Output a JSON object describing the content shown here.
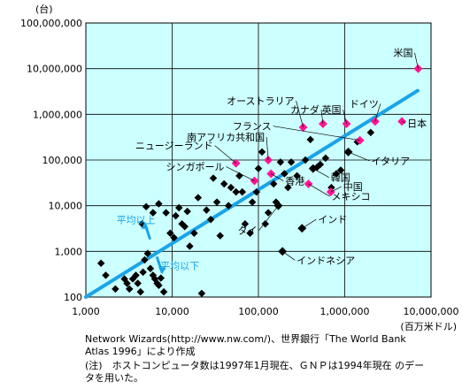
{
  "chart_data": {
    "type": "scatter",
    "title": "",
    "xlabel": "(百万米ドル)",
    "ylabel": "(台)",
    "x_scale": "log",
    "y_scale": "log",
    "xlim": [
      1000,
      10000000
    ],
    "ylim": [
      100,
      100000000
    ],
    "x_ticks": [
      {
        "v": 1000,
        "label": "1,000"
      },
      {
        "v": 10000,
        "label": "10,000"
      },
      {
        "v": 100000,
        "label": "100,000"
      },
      {
        "v": 1000000,
        "label": "1,000,000"
      },
      {
        "v": 10000000,
        "label": "10,000,000"
      }
    ],
    "y_ticks": [
      {
        "v": 100,
        "label": "100"
      },
      {
        "v": 1000,
        "label": "1,000"
      },
      {
        "v": 10000,
        "label": "10,000"
      },
      {
        "v": 100000,
        "label": "100,000"
      },
      {
        "v": 1000000,
        "label": "1,000,000"
      },
      {
        "v": 10000000,
        "label": "10,000,000"
      },
      {
        "v": 100000000,
        "label": "100,000,000"
      }
    ],
    "grid": true,
    "colors": {
      "background": "#ccffff",
      "highlight": "#ff1493",
      "marker": "#000000",
      "trend": "#1aa3e8"
    },
    "labeled_points": [
      {
        "label": "米国",
        "x": 7100000,
        "y": 10000000
      },
      {
        "label": "日本",
        "x": 4600000,
        "y": 700000
      },
      {
        "label": "ドイツ",
        "x": 2250000,
        "y": 700000
      },
      {
        "label": "英国",
        "x": 1050000,
        "y": 620000
      },
      {
        "label": "カナダ",
        "x": 560000,
        "y": 620000
      },
      {
        "label": "オーストラリア",
        "x": 330000,
        "y": 520000
      },
      {
        "label": "フランス",
        "x": 1500000,
        "y": 270000
      },
      {
        "label": "イタリア",
        "x": 1100000,
        "y": 150000
      },
      {
        "label": "韓国",
        "x": 430000,
        "y": 65000
      },
      {
        "label": "中国",
        "x": 690000,
        "y": 20000
      },
      {
        "label": "メキシコ",
        "x": 380000,
        "y": 30000
      },
      {
        "label": "香港",
        "x": 140000,
        "y": 50000
      },
      {
        "label": "南アフリカ共和国",
        "x": 130000,
        "y": 100000
      },
      {
        "label": "ニュージーランド",
        "x": 55000,
        "y": 85000
      },
      {
        "label": "シンガポール",
        "x": 90000,
        "y": 35000
      },
      {
        "label": "タイ",
        "x": 170000,
        "y": 10000
      },
      {
        "label": "インド",
        "x": 320000,
        "y": 3200
      },
      {
        "label": "インドネシア",
        "x": 190000,
        "y": 1000
      }
    ],
    "other_points": [
      [
        1500,
        550
      ],
      [
        1700,
        300
      ],
      [
        2200,
        150
      ],
      [
        2800,
        250
      ],
      [
        3000,
        200
      ],
      [
        3200,
        150
      ],
      [
        3500,
        250
      ],
      [
        3800,
        300
      ],
      [
        4000,
        200
      ],
      [
        4300,
        130
      ],
      [
        4600,
        350
      ],
      [
        4800,
        650
      ],
      [
        5000,
        9500
      ],
      [
        5200,
        900
      ],
      [
        5600,
        420
      ],
      [
        6000,
        300
      ],
      [
        6300,
        250
      ],
      [
        6700,
        200
      ],
      [
        7000,
        180
      ],
      [
        7400,
        260
      ],
      [
        8000,
        130
      ],
      [
        4500,
        4000
      ],
      [
        6000,
        7000
      ],
      [
        7000,
        11000
      ],
      [
        8500,
        7000
      ],
      [
        9500,
        2500
      ],
      [
        10500,
        2000
      ],
      [
        11000,
        6000
      ],
      [
        12000,
        9000
      ],
      [
        13000,
        4000
      ],
      [
        14000,
        3500
      ],
      [
        15000,
        7500
      ],
      [
        16000,
        1300
      ],
      [
        18000,
        2500
      ],
      [
        20000,
        15000
      ],
      [
        22000,
        120
      ],
      [
        25000,
        8000
      ],
      [
        28000,
        5000
      ],
      [
        30000,
        40000
      ],
      [
        33000,
        12000
      ],
      [
        36000,
        2200
      ],
      [
        40000,
        30000
      ],
      [
        45000,
        10000
      ],
      [
        48000,
        25000
      ],
      [
        55000,
        20000
      ],
      [
        60000,
        45000
      ],
      [
        65000,
        20000
      ],
      [
        70000,
        4000
      ],
      [
        80000,
        2500
      ],
      [
        85000,
        12000
      ],
      [
        95000,
        20000
      ],
      [
        100000,
        65000
      ],
      [
        110000,
        150000
      ],
      [
        120000,
        4000
      ],
      [
        130000,
        7000
      ],
      [
        150000,
        30000
      ],
      [
        160000,
        12000
      ],
      [
        180000,
        90000
      ],
      [
        200000,
        50000
      ],
      [
        240000,
        90000
      ],
      [
        280000,
        45000
      ],
      [
        350000,
        100000
      ],
      [
        400000,
        280000
      ],
      [
        480000,
        70000
      ],
      [
        520000,
        80000
      ],
      [
        600000,
        110000
      ],
      [
        700000,
        25000
      ],
      [
        800000,
        50000
      ],
      [
        1400000,
        250000
      ],
      [
        2000000,
        400000
      ],
      [
        900000,
        60000
      ],
      [
        220000,
        25000
      ]
    ],
    "trendline": {
      "from": [
        1000,
        100
      ],
      "to": [
        7000000,
        3300000
      ]
    },
    "bands": [
      {
        "label": "平均以上",
        "x": 4600,
        "y": 2400
      },
      {
        "label": "平均以下",
        "x": 5500,
        "y": 1000
      }
    ]
  },
  "notes": {
    "line1": "Network Wizards(http://www.nw.com/)、世界銀行「The World Bank",
    "line2": "Atlas 1996」により作成",
    "line3": "(注)　ホストコンピュータ数は1997年1月現在、ＧＮＰは1994年現在 のデー",
    "line4": "タを用いた。"
  }
}
